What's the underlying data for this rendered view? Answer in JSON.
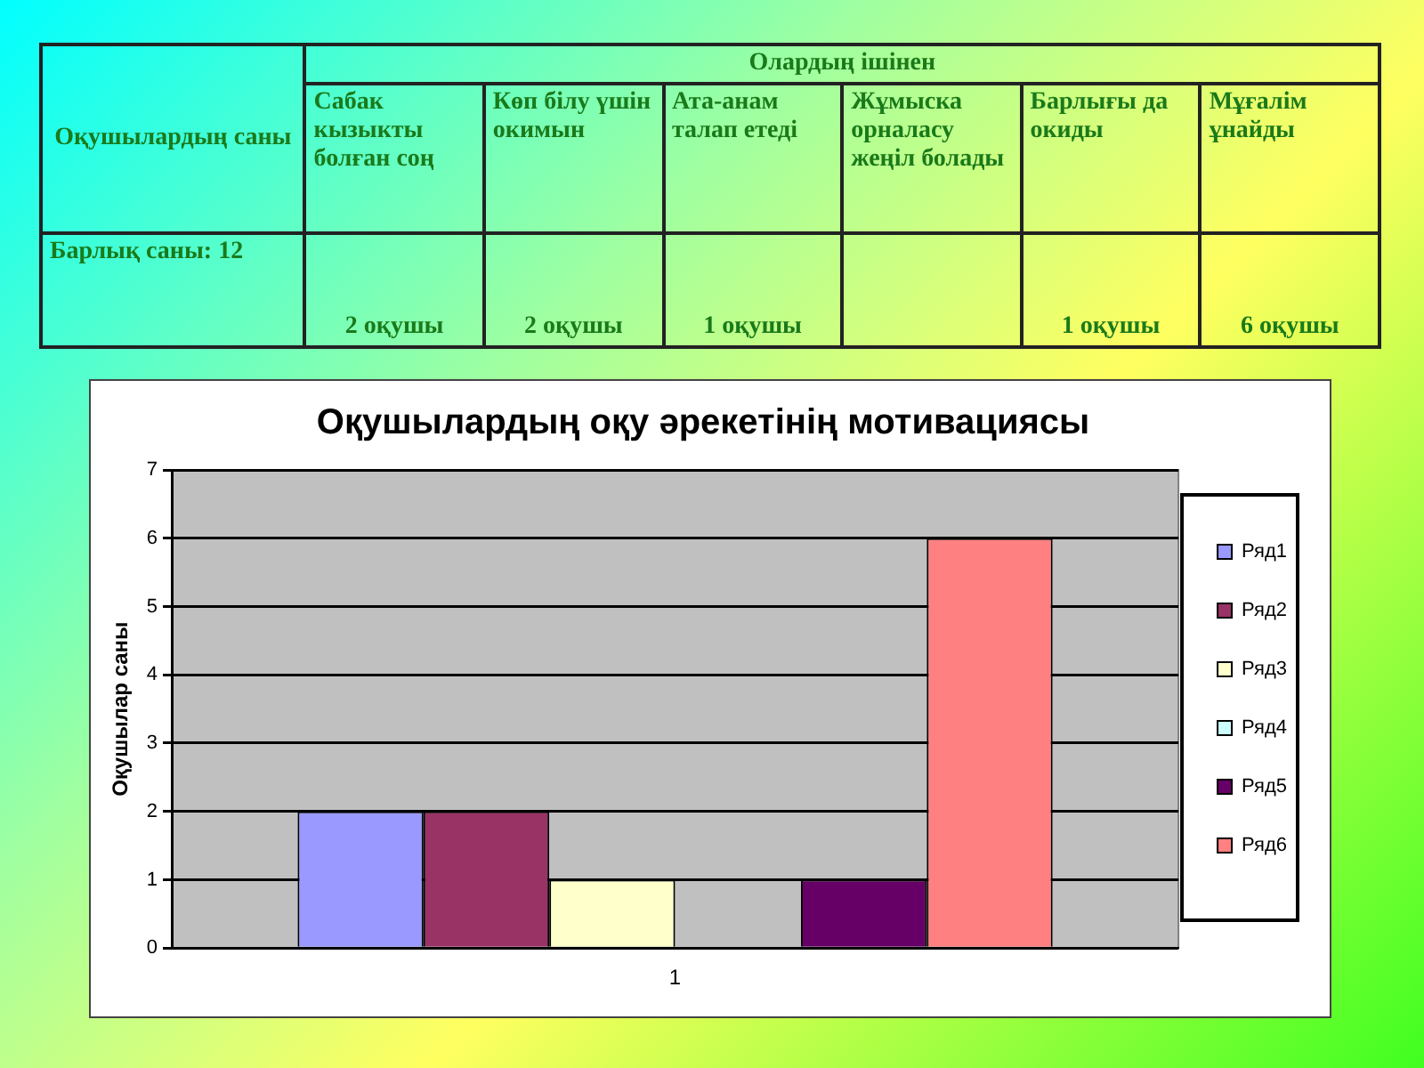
{
  "chart_data": {
    "type": "bar",
    "title": "Оқушылардың оқу әрекетінің мотивациясы",
    "ylabel": "Оқушылар саны",
    "categories": [
      "1"
    ],
    "series": [
      {
        "name": "Ряд1",
        "color": "#9999ff",
        "values": [
          2
        ]
      },
      {
        "name": "Ряд2",
        "color": "#993366",
        "values": [
          2
        ]
      },
      {
        "name": "Ряд3",
        "color": "#ffffcc",
        "values": [
          1
        ]
      },
      {
        "name": "Ряд4",
        "color": "#ccffff",
        "values": [
          0
        ]
      },
      {
        "name": "Ряд5",
        "color": "#660066",
        "values": [
          1
        ]
      },
      {
        "name": "Ряд6",
        "color": "#ff8080",
        "values": [
          6
        ]
      }
    ],
    "ylim": [
      0,
      7
    ],
    "yticks": [
      0,
      1,
      2,
      3,
      4,
      5,
      6,
      7
    ],
    "grid": "y",
    "legend": "right",
    "annotations": [
      "Оқушылардың саны",
      "Олардың ішінен",
      "Сабак кызыкты болған соң",
      "Көп білу үшін окимын",
      "Ата-анам талап етеді",
      "Жұмыска орналасу жеңіл болады",
      "Барлығы да окиды",
      "Мұғалім ұнайды",
      "Барлық саны: 12",
      "2 оқушы",
      "2 оқушы",
      "1 оқушы",
      "1 оқушы",
      "6 оқушы"
    ]
  }
}
